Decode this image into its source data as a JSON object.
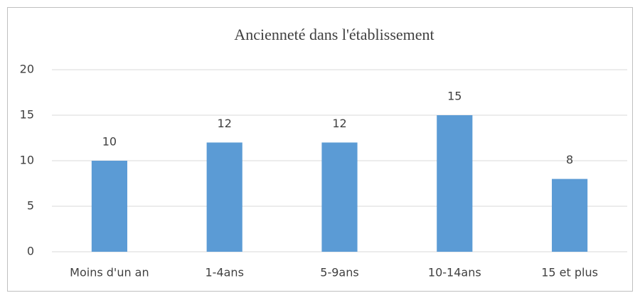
{
  "chart_data": {
    "type": "bar",
    "title": "Ancienneté dans l'établissement",
    "categories": [
      "Moins d'un an",
      "1-4ans",
      "5-9ans",
      "10-14ans",
      "15 et plus"
    ],
    "values": [
      10,
      12,
      12,
      15,
      8
    ],
    "color": "#5b9bd5",
    "ylim": [
      0,
      20
    ],
    "yticks": [
      0,
      5,
      10,
      15,
      20
    ],
    "grid": true
  }
}
